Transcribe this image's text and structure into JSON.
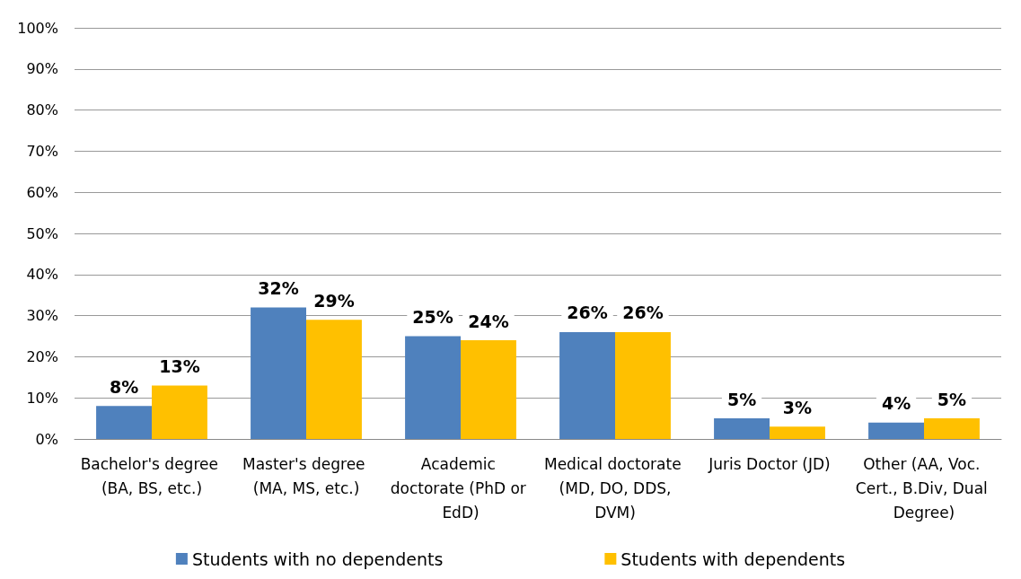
{
  "chart_data": {
    "type": "bar",
    "categories": [
      "Bachelor's degree (BA, BS, etc.)",
      "Master's degree (MA, MS, etc.)",
      "Academic doctorate (PhD or EdD)",
      "Medical doctorate  (MD, DO, DDS, DVM)",
      "Juris Doctor (JD)",
      "Other (AA, Voc. Cert., B.Div, Dual Degree)"
    ],
    "series": [
      {
        "name": "Students with no dependents",
        "color": "#4f81bd",
        "values": [
          8,
          32,
          25,
          26,
          5,
          4
        ],
        "value_labels": [
          "8%",
          "32%",
          "25%",
          "26%",
          "5%",
          "4%"
        ]
      },
      {
        "name": "Students with dependents",
        "color": "#ffc000",
        "values": [
          13,
          29,
          24,
          26,
          3,
          5
        ],
        "value_labels": [
          "13%",
          "29%",
          "24%",
          "26%",
          "3%",
          "5%"
        ]
      }
    ],
    "ylim": [
      0,
      100
    ],
    "yticks": [
      {
        "value": 0,
        "label": "0%"
      },
      {
        "value": 10,
        "label": "10%"
      },
      {
        "value": 20,
        "label": "20%"
      },
      {
        "value": 30,
        "label": "30%"
      },
      {
        "value": 40,
        "label": "40%"
      },
      {
        "value": 50,
        "label": "50%"
      },
      {
        "value": 60,
        "label": "60%"
      },
      {
        "value": 70,
        "label": "70%"
      },
      {
        "value": 80,
        "label": "80%"
      },
      {
        "value": 90,
        "label": "90%"
      },
      {
        "value": 100,
        "label": "100%"
      }
    ],
    "grid": "y",
    "legend": "bottom"
  }
}
